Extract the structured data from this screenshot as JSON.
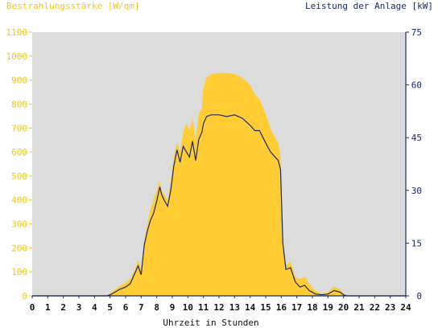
{
  "chart_data": {
    "type": "area",
    "xlabel": "Uhrzeit in Stunden",
    "ylabel_left": "Bestrahlungsstärke [W/qm]",
    "ylabel_right": "Leistung der Anlage [kW]",
    "xlim": [
      0,
      24
    ],
    "ylim_left": [
      0,
      1100
    ],
    "ylim_right": [
      0,
      75
    ],
    "x_ticks": [
      "0",
      "1",
      "2",
      "3",
      "4",
      "5",
      "6",
      "7",
      "8",
      "9",
      "10",
      "11",
      "12",
      "13",
      "14",
      "15",
      "16",
      "17",
      "18",
      "19",
      "20",
      "21",
      "22",
      "23",
      "24"
    ],
    "y_left_ticks": [
      "0",
      "100",
      "200",
      "300",
      "400",
      "500",
      "600",
      "700",
      "800",
      "900",
      "1000",
      "1100"
    ],
    "y_right_ticks": [
      "0",
      "15",
      "30",
      "45",
      "60",
      "75"
    ],
    "grid": false,
    "background": "#dcdcdc",
    "colors": {
      "irradiance": "#ffcc33",
      "power": "#1a2a6c",
      "left_axis": "#f5c518",
      "right_axis": "#1a2a6c"
    },
    "series": [
      {
        "unit": "W/qm",
        "axis": "left",
        "style": "area",
        "x": [
          0,
          4.8,
          5.0,
          5.3,
          5.6,
          6.0,
          6.3,
          6.6,
          6.8,
          7.0,
          7.2,
          7.4,
          7.6,
          7.8,
          8.0,
          8.2,
          8.3,
          8.5,
          8.7,
          8.9,
          9.1,
          9.3,
          9.5,
          9.7,
          9.9,
          10.1,
          10.3,
          10.5,
          10.7,
          10.9,
          11.0,
          11.2,
          11.5,
          12.0,
          12.5,
          13.0,
          13.5,
          14.0,
          14.3,
          14.6,
          15.0,
          15.3,
          15.6,
          15.8,
          15.95,
          16.1,
          16.3,
          16.6,
          16.9,
          17.2,
          17.5,
          17.8,
          18.2,
          18.6,
          19.0,
          19.4,
          19.8,
          20.0,
          20.2,
          24
        ],
        "values": [
          0,
          0,
          10,
          25,
          40,
          55,
          70,
          110,
          150,
          110,
          230,
          300,
          360,
          400,
          440,
          480,
          440,
          420,
          400,
          480,
          580,
          640,
          600,
          680,
          720,
          690,
          740,
          650,
          760,
          780,
          870,
          910,
          925,
          930,
          930,
          925,
          910,
          880,
          840,
          820,
          760,
          700,
          660,
          640,
          580,
          250,
          130,
          140,
          80,
          70,
          80,
          50,
          20,
          10,
          15,
          40,
          25,
          10,
          0,
          0
        ]
      },
      {
        "unit": "kW",
        "axis": "right",
        "style": "line",
        "x": [
          0,
          4.8,
          5.0,
          5.3,
          5.6,
          6.0,
          6.3,
          6.6,
          6.8,
          7.0,
          7.2,
          7.4,
          7.6,
          7.8,
          8.0,
          8.2,
          8.3,
          8.5,
          8.7,
          8.9,
          9.1,
          9.3,
          9.5,
          9.7,
          9.9,
          10.1,
          10.3,
          10.5,
          10.7,
          10.9,
          11.0,
          11.2,
          11.5,
          12.0,
          12.5,
          13.0,
          13.5,
          14.0,
          14.3,
          14.6,
          15.0,
          15.3,
          15.6,
          15.8,
          15.95,
          16.1,
          16.3,
          16.6,
          16.9,
          17.2,
          17.5,
          17.8,
          18.2,
          18.6,
          19.0,
          19.4,
          19.8,
          20.0,
          20.2,
          24
        ],
        "values": [
          0,
          0,
          0.3,
          1.0,
          1.8,
          2.5,
          3.5,
          6.5,
          8.5,
          6.0,
          14.5,
          18.5,
          21.5,
          23.5,
          27.0,
          31.0,
          29.0,
          27.0,
          25.5,
          30.0,
          37.0,
          41.5,
          38.0,
          42.5,
          41.0,
          39.5,
          44.0,
          38.5,
          44.5,
          46.5,
          49.0,
          51.0,
          51.5,
          51.5,
          51.0,
          51.5,
          50.5,
          48.5,
          47.0,
          47.0,
          43.5,
          41.0,
          39.5,
          38.5,
          36.0,
          15.0,
          7.5,
          8.0,
          4.0,
          2.5,
          3.0,
          1.5,
          0.5,
          0.3,
          0.5,
          1.5,
          1.0,
          0.3,
          0,
          0
        ]
      }
    ]
  }
}
